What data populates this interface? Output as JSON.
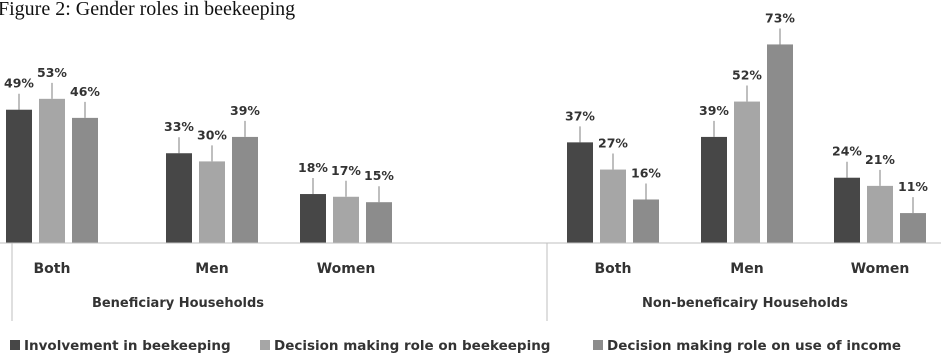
{
  "page": {
    "title": "Figure 2: Gender roles in beekeeping"
  },
  "colors": {
    "series": [
      "#474747",
      "#a6a6a6",
      "#8c8c8c"
    ],
    "axis": "#bfbfbf",
    "error_bar": "#7f7f7f",
    "text": "#333333"
  },
  "chart_data": {
    "type": "bar",
    "title": "Figure 2: Gender roles in beekeeping",
    "unit": "%",
    "ylim": [
      0,
      75
    ],
    "grid": false,
    "legend_position": "bottom",
    "groups": [
      {
        "label": "Beneficiary Households",
        "categories": [
          "Both",
          "Men",
          "Women"
        ],
        "series": [
          {
            "name": "Involvement in beekeeping",
            "values": [
              49,
              33,
              18
            ],
            "labels": [
              "49%",
              "33%",
              "18%"
            ]
          },
          {
            "name": "Decision making role on beekeeping",
            "values": [
              53,
              30,
              17
            ],
            "labels": [
              "53%",
              "30%",
              "17%"
            ]
          },
          {
            "name": "Decision making role on use of income",
            "values": [
              46,
              39,
              15
            ],
            "labels": [
              "46%",
              "39%",
              "15%"
            ]
          }
        ]
      },
      {
        "label": "Non-beneficairy Households",
        "categories": [
          "Both",
          "Men",
          "Women"
        ],
        "series": [
          {
            "name": "Involvement in beekeeping",
            "values": [
              37,
              39,
              24
            ],
            "labels": [
              "37%",
              "39%",
              "24%"
            ]
          },
          {
            "name": "Decision making role on beekeeping",
            "values": [
              27,
              52,
              21
            ],
            "labels": [
              "27%",
              "52%",
              "21%"
            ]
          },
          {
            "name": "Decision making role on use of income",
            "values": [
              16,
              73,
              11
            ],
            "labels": [
              "16%",
              "73%",
              "11%"
            ]
          }
        ]
      }
    ],
    "legend": [
      "Involvement in beekeeping",
      "Decision making role on beekeeping",
      "Decision making role on use of income"
    ]
  }
}
